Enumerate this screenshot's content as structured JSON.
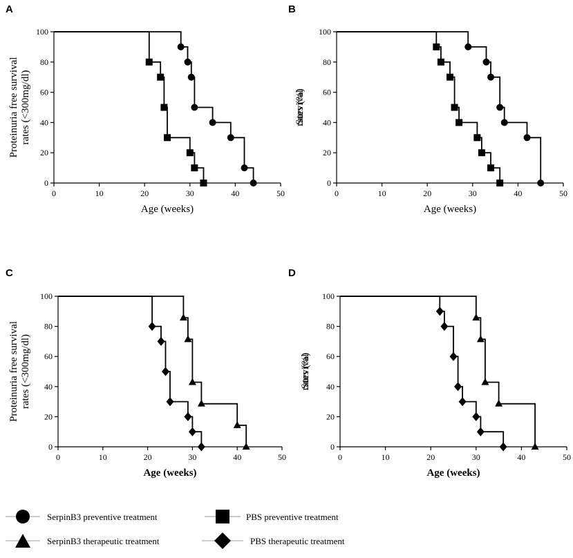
{
  "chart_data": [
    {
      "panel": "A",
      "type": "line",
      "ylabel": "Proteinuria free survival rates (<300mg/dl)",
      "xlabel": "Age (weeks)",
      "xlim": [
        0,
        50
      ],
      "ylim": [
        0,
        100
      ],
      "xticks": [
        0,
        10,
        20,
        30,
        40,
        50
      ],
      "yticks": [
        0,
        20,
        40,
        60,
        80,
        100
      ],
      "series": [
        {
          "name": "SerpinB3 preventive treatment",
          "marker": "circle",
          "steps": [
            [
              0,
              100
            ],
            [
              28,
              100
            ],
            [
              28,
              90
            ],
            [
              29.5,
              90
            ],
            [
              29.5,
              80
            ],
            [
              30.3,
              80
            ],
            [
              30.3,
              70
            ],
            [
              31,
              70
            ],
            [
              31,
              50
            ],
            [
              35,
              50
            ],
            [
              35,
              40
            ],
            [
              39,
              40
            ],
            [
              39,
              30
            ],
            [
              42,
              30
            ],
            [
              42,
              10
            ],
            [
              44,
              10
            ],
            [
              44,
              0
            ]
          ],
          "markers": [
            [
              28,
              90
            ],
            [
              29.5,
              80
            ],
            [
              30.3,
              70
            ],
            [
              31,
              50
            ],
            [
              35,
              40
            ],
            [
              39,
              30
            ],
            [
              42,
              10
            ],
            [
              44,
              0
            ]
          ]
        },
        {
          "name": "PBS preventive treatment",
          "marker": "square",
          "steps": [
            [
              0,
              100
            ],
            [
              21,
              100
            ],
            [
              21,
              80
            ],
            [
              23.5,
              80
            ],
            [
              23.5,
              70
            ],
            [
              24.3,
              70
            ],
            [
              24.3,
              50
            ],
            [
              25,
              50
            ],
            [
              25,
              30
            ],
            [
              30,
              30
            ],
            [
              30,
              20
            ],
            [
              31,
              20
            ],
            [
              31,
              10
            ],
            [
              33,
              10
            ],
            [
              33,
              0
            ]
          ],
          "markers": [
            [
              21,
              80
            ],
            [
              23.5,
              70
            ],
            [
              24.3,
              50
            ],
            [
              25,
              30
            ],
            [
              30,
              20
            ],
            [
              31,
              10
            ],
            [
              33,
              0
            ]
          ]
        }
      ]
    },
    {
      "panel": "B",
      "type": "line",
      "ylabel": "Survival rates (%)",
      "xlabel": "Age (weeks)",
      "xlim": [
        0,
        50
      ],
      "ylim": [
        0,
        100
      ],
      "xticks": [
        0,
        10,
        20,
        30,
        40,
        50
      ],
      "yticks": [
        0,
        20,
        40,
        60,
        80,
        100
      ],
      "series": [
        {
          "name": "SerpinB3 preventive treatment",
          "marker": "circle",
          "steps": [
            [
              0,
              100
            ],
            [
              29,
              100
            ],
            [
              29,
              90
            ],
            [
              33,
              90
            ],
            [
              33,
              80
            ],
            [
              34,
              80
            ],
            [
              34,
              70
            ],
            [
              36,
              70
            ],
            [
              36,
              50
            ],
            [
              37,
              50
            ],
            [
              37,
              40
            ],
            [
              42,
              40
            ],
            [
              42,
              30
            ],
            [
              45,
              30
            ],
            [
              45,
              0
            ]
          ],
          "markers": [
            [
              29,
              90
            ],
            [
              33,
              80
            ],
            [
              34,
              70
            ],
            [
              36,
              50
            ],
            [
              37,
              40
            ],
            [
              42,
              30
            ],
            [
              45,
              0
            ]
          ]
        },
        {
          "name": "PBS preventive treatment",
          "marker": "square",
          "steps": [
            [
              0,
              100
            ],
            [
              22,
              100
            ],
            [
              22,
              90
            ],
            [
              23,
              90
            ],
            [
              23,
              80
            ],
            [
              25,
              80
            ],
            [
              25,
              70
            ],
            [
              26,
              70
            ],
            [
              26,
              50
            ],
            [
              27,
              50
            ],
            [
              27,
              40
            ],
            [
              31,
              40
            ],
            [
              31,
              30
            ],
            [
              32,
              30
            ],
            [
              32,
              20
            ],
            [
              34,
              20
            ],
            [
              34,
              10
            ],
            [
              36,
              10
            ],
            [
              36,
              0
            ]
          ],
          "markers": [
            [
              22,
              90
            ],
            [
              23,
              80
            ],
            [
              25,
              70
            ],
            [
              26,
              50
            ],
            [
              27,
              40
            ],
            [
              31,
              30
            ],
            [
              32,
              20
            ],
            [
              34,
              10
            ],
            [
              36,
              0
            ]
          ]
        }
      ]
    },
    {
      "panel": "C",
      "type": "line",
      "ylabel": "Proteinuria free survival rates (<300mg/dl)",
      "xlabel": "Age (weeks)",
      "xlim": [
        0,
        50
      ],
      "ylim": [
        0,
        100
      ],
      "xticks": [
        0,
        10,
        20,
        30,
        40,
        50
      ],
      "yticks": [
        0,
        20,
        40,
        60,
        80,
        100
      ],
      "series": [
        {
          "name": "SerpinB3 therapeutic treatment",
          "marker": "triangle",
          "steps": [
            [
              0,
              100
            ],
            [
              28,
              100
            ],
            [
              28,
              85.7
            ],
            [
              29,
              85.7
            ],
            [
              29,
              71.4
            ],
            [
              30,
              71.4
            ],
            [
              30,
              42.9
            ],
            [
              32,
              42.9
            ],
            [
              32,
              28.6
            ],
            [
              40,
              28.6
            ],
            [
              40,
              14.3
            ],
            [
              42,
              14.3
            ],
            [
              42,
              0
            ]
          ],
          "markers": [
            [
              28,
              85.7
            ],
            [
              29,
              71.4
            ],
            [
              30,
              42.9
            ],
            [
              32,
              28.6
            ],
            [
              40,
              14.3
            ],
            [
              42,
              0
            ]
          ]
        },
        {
          "name": "PBS therapeutic treatment",
          "marker": "diamond",
          "steps": [
            [
              0,
              100
            ],
            [
              21,
              100
            ],
            [
              21,
              80
            ],
            [
              23,
              80
            ],
            [
              23,
              70
            ],
            [
              24,
              70
            ],
            [
              24,
              50
            ],
            [
              25,
              50
            ],
            [
              25,
              30
            ],
            [
              29,
              30
            ],
            [
              29,
              20
            ],
            [
              30,
              20
            ],
            [
              30,
              10
            ],
            [
              32,
              10
            ],
            [
              32,
              0
            ]
          ],
          "markers": [
            [
              21,
              80
            ],
            [
              23,
              70
            ],
            [
              24,
              50
            ],
            [
              25,
              30
            ],
            [
              29,
              20
            ],
            [
              30,
              10
            ],
            [
              32,
              0
            ]
          ]
        }
      ]
    },
    {
      "panel": "D",
      "type": "line",
      "ylabel": "Survival rates (%)",
      "xlabel": "Age (weeks)",
      "xlim": [
        0,
        50
      ],
      "ylim": [
        0,
        100
      ],
      "xticks": [
        0,
        10,
        20,
        30,
        40,
        50
      ],
      "yticks": [
        0,
        20,
        40,
        60,
        80,
        100
      ],
      "series": [
        {
          "name": "SerpinB3 therapeutic treatment",
          "marker": "triangle",
          "steps": [
            [
              0,
              100
            ],
            [
              30,
              100
            ],
            [
              30,
              85.7
            ],
            [
              31,
              85.7
            ],
            [
              31,
              71.4
            ],
            [
              32,
              71.4
            ],
            [
              32,
              42.9
            ],
            [
              35,
              42.9
            ],
            [
              35,
              28.6
            ],
            [
              43,
              28.6
            ],
            [
              43,
              0
            ]
          ],
          "markers": [
            [
              30,
              85.7
            ],
            [
              31,
              71.4
            ],
            [
              32,
              42.9
            ],
            [
              35,
              28.6
            ],
            [
              43,
              0
            ]
          ]
        },
        {
          "name": "PBS therapeutic treatment",
          "marker": "diamond",
          "steps": [
            [
              0,
              100
            ],
            [
              22,
              100
            ],
            [
              22,
              90
            ],
            [
              23,
              90
            ],
            [
              23,
              80
            ],
            [
              25,
              80
            ],
            [
              25,
              60
            ],
            [
              26,
              60
            ],
            [
              26,
              40
            ],
            [
              27,
              40
            ],
            [
              27,
              30
            ],
            [
              30,
              30
            ],
            [
              30,
              20
            ],
            [
              31,
              20
            ],
            [
              31,
              10
            ],
            [
              36,
              10
            ],
            [
              36,
              0
            ]
          ],
          "markers": [
            [
              22,
              90
            ],
            [
              23,
              80
            ],
            [
              25,
              60
            ],
            [
              26,
              40
            ],
            [
              27,
              30
            ],
            [
              30,
              20
            ],
            [
              31,
              10
            ],
            [
              36,
              0
            ]
          ]
        }
      ]
    }
  ],
  "legend": [
    {
      "label": "SerpinB3 preventive treatment",
      "marker": "circle"
    },
    {
      "label": "PBS preventive treatment",
      "marker": "square"
    },
    {
      "label": "SerpinB3 therapeutic treatment",
      "marker": "triangle"
    },
    {
      "label": "PBS therapeutic treatment",
      "marker": "diamond"
    }
  ]
}
